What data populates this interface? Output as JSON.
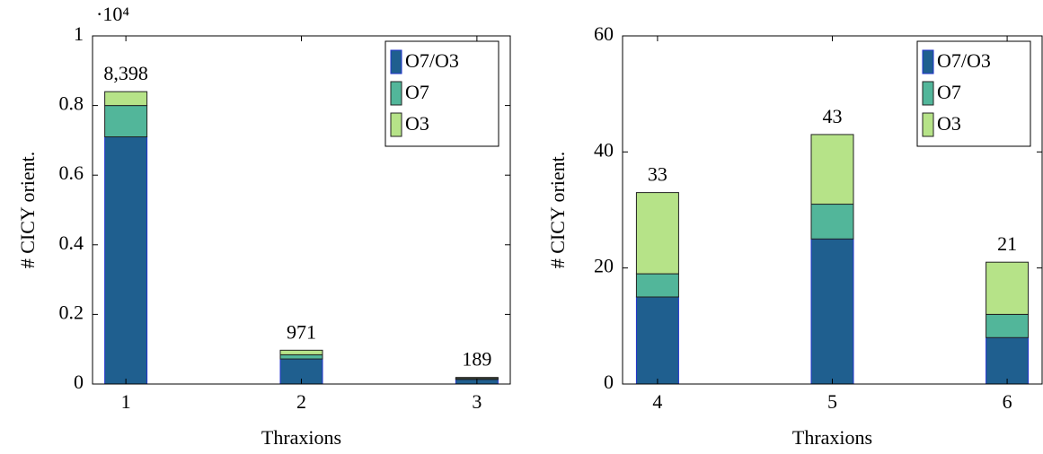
{
  "chart_data": [
    {
      "type": "stacked_bar",
      "x_label": "Thraxions",
      "y_label": "# CICY orient.",
      "y_multiplier_label": "·10⁴",
      "x": [
        1,
        2,
        3
      ],
      "xlim": [
        0.81,
        3.19
      ],
      "xticks": [
        1,
        2,
        3
      ],
      "ylim": [
        0,
        10000
      ],
      "yticks": [
        {
          "value": 0,
          "label": "0"
        },
        {
          "value": 2000,
          "label": "0.2"
        },
        {
          "value": 4000,
          "label": "0.4"
        },
        {
          "value": 6000,
          "label": "0.6"
        },
        {
          "value": 8000,
          "label": "0.8"
        },
        {
          "value": 10000,
          "label": "1"
        }
      ],
      "legend": "north east",
      "series": [
        {
          "name": "O7/O3",
          "color": "#1f5f8f",
          "values": [
            7100,
            720,
            130
          ]
        },
        {
          "name": "O7",
          "color": "#52b69a",
          "values": [
            900,
            120,
            30
          ]
        },
        {
          "name": "O3",
          "color": "#b6e388",
          "values": [
            398,
            131,
            29
          ]
        }
      ],
      "totals": [
        8398,
        971,
        189
      ],
      "total_labels": [
        "8,398",
        "971",
        "189"
      ]
    },
    {
      "type": "stacked_bar",
      "x_label": "Thraxions",
      "y_label": "# CICY orient.",
      "x": [
        4,
        5,
        6
      ],
      "xlim": [
        3.8,
        6.2
      ],
      "xticks": [
        4,
        5,
        6
      ],
      "ylim": [
        0,
        60
      ],
      "yticks": [
        0,
        20,
        40,
        60
      ],
      "legend": "north east",
      "series": [
        {
          "name": "O7/O3",
          "color": "#1f5f8f",
          "values": [
            15,
            25,
            8
          ]
        },
        {
          "name": "O7",
          "color": "#52b69a",
          "values": [
            4,
            6,
            4
          ]
        },
        {
          "name": "O3",
          "color": "#b6e388",
          "values": [
            14,
            12,
            9
          ]
        }
      ],
      "totals": [
        33,
        43,
        21
      ],
      "total_labels": [
        "33",
        "43",
        "21"
      ]
    }
  ]
}
